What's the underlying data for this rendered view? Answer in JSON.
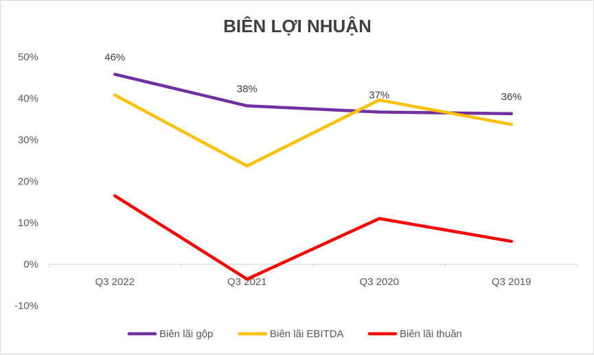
{
  "chart_data": {
    "type": "line",
    "title": "BIÊN LỢI NHUẬN",
    "categories": [
      "Q3 2022",
      "Q3 2021",
      "Q3 2020",
      "Q3 2019"
    ],
    "ylim": [
      -10,
      50
    ],
    "yticks": [
      50,
      40,
      30,
      20,
      10,
      0,
      -10
    ],
    "ytick_labels": [
      "50%",
      "40%",
      "30%",
      "20%",
      "10%",
      "0%",
      "-10%"
    ],
    "grid": false,
    "legend_position": "bottom",
    "series": [
      {
        "name": "Biên lãi gộp",
        "color": "#7030a0",
        "values": [
          45.8,
          38.2,
          36.7,
          36.3
        ],
        "labels": [
          "46%",
          "38%",
          "37%",
          "36%"
        ]
      },
      {
        "name": "Biên lãi EBITDA",
        "color": "#ffc000",
        "values": [
          40.8,
          23.7,
          39.6,
          33.7
        ]
      },
      {
        "name": "Biên lãi thuần",
        "color": "#ff0000",
        "values": [
          16.5,
          -3.6,
          11.0,
          5.5
        ]
      }
    ]
  }
}
